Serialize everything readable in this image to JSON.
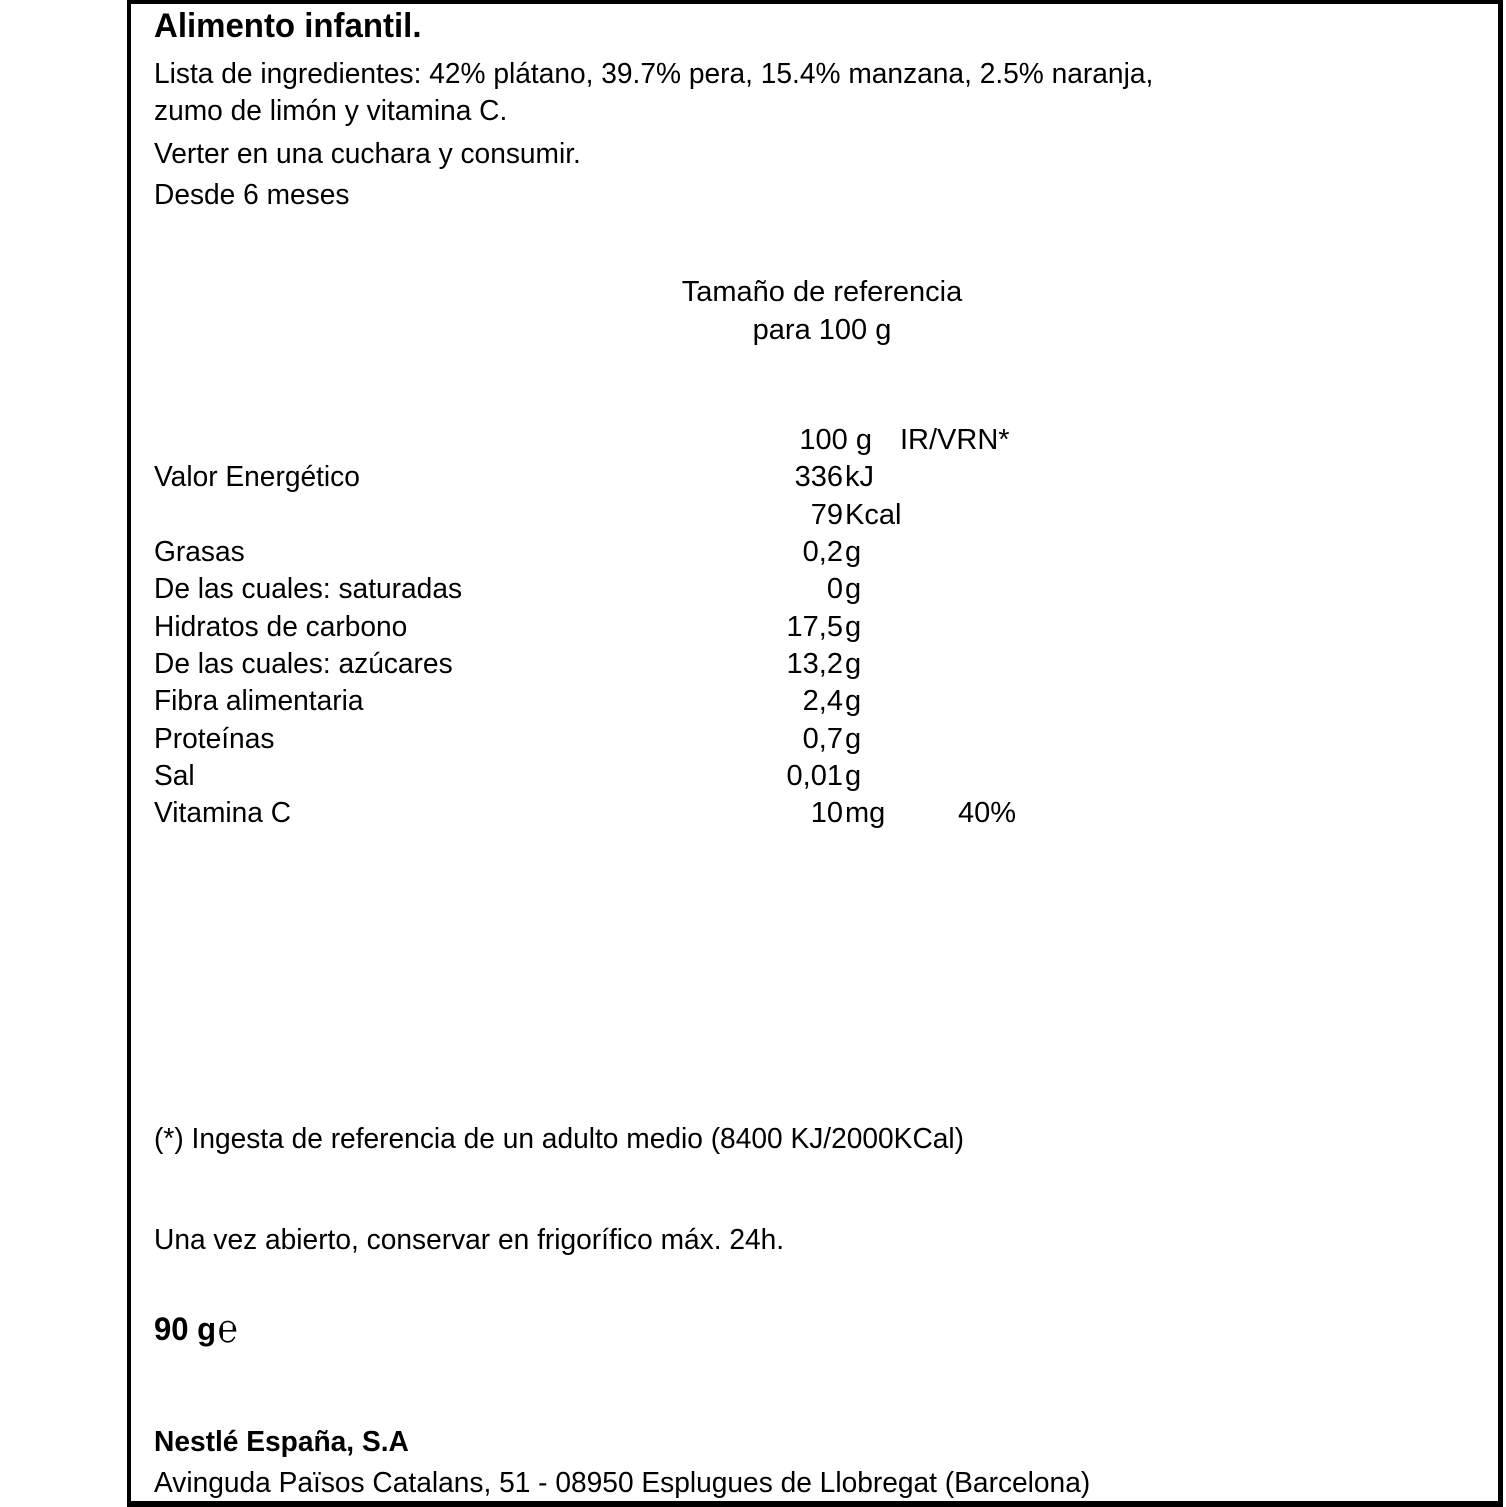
{
  "title": "Alimento infantil.",
  "ingredients_line1": "Lista de ingredientes: 42% plátano, 39.7% pera, 15.4% manzana, 2.5% naranja,",
  "ingredients_line2": "zumo de limón y vitamina C.",
  "instructions": "Verter en una cuchara y consumir.",
  "age": "Desde 6 meses",
  "reference_line1": "Tamaño de referencia",
  "reference_line2": "para 100 g",
  "table": {
    "header_per": "100 g",
    "header_ir": "IR/VRN*",
    "rows": [
      {
        "label": "Valor  Energético",
        "num": "336",
        "unit": "kJ",
        "ir": ""
      },
      {
        "label": "",
        "num": "79",
        "unit": "Kcal",
        "ir": ""
      },
      {
        "label": "Grasas",
        "num": "0,2",
        "unit": "g",
        "ir": ""
      },
      {
        "label": "De las cuales: saturadas",
        "num": "0",
        "unit": "g",
        "ir": ""
      },
      {
        "label": "Hidratos de carbono",
        "num": "17,5",
        "unit": "g",
        "ir": ""
      },
      {
        "label": "De las cuales: azúcares",
        "num": "13,2",
        "unit": "g",
        "ir": ""
      },
      {
        "label": "Fibra  alimentaria",
        "num": "2,4",
        "unit": "g",
        "ir": ""
      },
      {
        "label": "Proteínas",
        "num": "0,7",
        "unit": "g",
        "ir": ""
      },
      {
        "label": "Sal",
        "num": "0,01",
        "unit": "g",
        "ir": ""
      },
      {
        "label": "Vitamina  C",
        "num": "10",
        "unit": "mg",
        "ir": "40%"
      }
    ]
  },
  "footnote": "(*) Ingesta de referencia de un adulto medio (8400 KJ/2000KCal)",
  "storage": "Una vez abierto, conservar en frigorífico máx. 24h.",
  "net_weight": "90 g",
  "estimated_mark": "℮",
  "company": "Nestlé España, S.A",
  "address": "Avinguda Països Catalans, 51 - 08950 Esplugues de Llobregat (Barcelona)"
}
